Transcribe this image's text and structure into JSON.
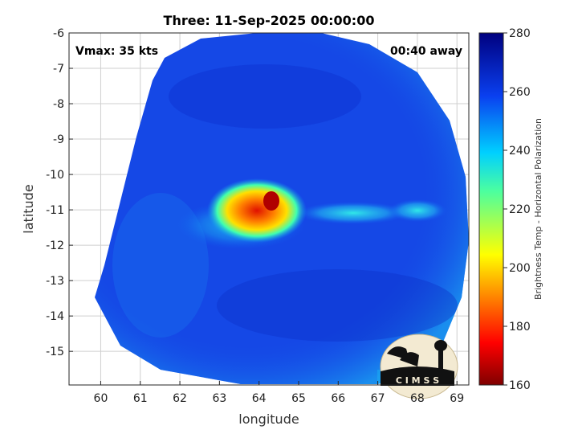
{
  "title": "Three: 11-Sep-2025 00:00:00",
  "vmax_label": "Vmax: 35 kts",
  "time_label": "00:40 away",
  "logo_text": "C I M S S",
  "colors": {
    "low_blue": "#1440e0",
    "cyan": "#19d0ec",
    "core_red": "#e02010"
  },
  "chart_data": {
    "type": "heatmap",
    "xlabel": "longitude",
    "ylabel": "latitude",
    "xlim": [
      59.2,
      69.3
    ],
    "ylim": [
      -15.95,
      -6.0
    ],
    "xticks": [
      60,
      61,
      62,
      63,
      64,
      65,
      66,
      67,
      68,
      69
    ],
    "yticks": [
      -6,
      -7,
      -8,
      -9,
      -10,
      -11,
      -12,
      -13,
      -14,
      -15
    ],
    "grid": true,
    "colorbar": {
      "label": "Brightness Temp - Horizontal Polarization",
      "min": 160,
      "max": 280,
      "ticks": [
        160,
        180,
        200,
        220,
        240,
        260,
        280
      ]
    },
    "features": [
      {
        "name": "convective core",
        "lon": 64.1,
        "lat": -11.0,
        "value": 180
      },
      {
        "name": "warm ring",
        "lon": 64.0,
        "lat": -11.1,
        "value": 230
      },
      {
        "name": "rainband east",
        "lon": 66.3,
        "lat": -11.1,
        "value": 245
      },
      {
        "name": "rainband far east",
        "lon": 68.0,
        "lat": -11.0,
        "value": 240
      }
    ]
  }
}
